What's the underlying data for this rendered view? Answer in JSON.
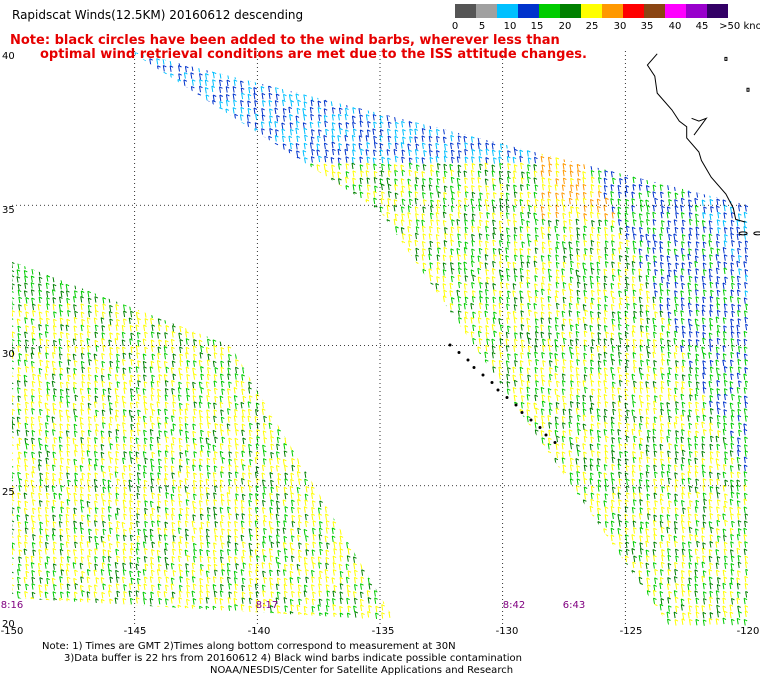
{
  "title": "Rapidscat Winds(12.5KM) 20160612 descending",
  "note_red": [
    "Note: black circles have been added to the wind barbs, wherever less than",
    "optimal wind retrieval conditions are met due to the ISS attitude changes."
  ],
  "colorbar": {
    "labels": [
      "0",
      "5",
      "10",
      "15",
      "20",
      "25",
      "30",
      "35",
      "40",
      "45",
      ">50 knots"
    ],
    "colors": [
      "#555555",
      "#a0a0a0",
      "#00c0ff",
      "#0033cc",
      "#00cc00",
      "#008000",
      "#ffff00",
      "#ff9900",
      "#ff0000",
      "#8b4513",
      "#ff00ff",
      "#9900cc",
      "#330066"
    ]
  },
  "lat_ticks": [
    "40",
    "35",
    "30",
    "25",
    "20"
  ],
  "lon_ticks": [
    "-150",
    "-145",
    "-140",
    "-135",
    "-130",
    "-125",
    "-120"
  ],
  "times": [
    "8:16",
    "8:17",
    "8:42",
    "6:43"
  ],
  "footer": {
    "line1": "Note: 1) Times are GMT 2)Times along bottom correspond to measurement at 30N",
    "line2": "3)Data buffer is 22 hrs from 20160612 4) Black wind barbs indicate possible contamination",
    "line3": "NOAA/NESDIS/Center for Satellite Applications and Research"
  },
  "map_data": {
    "lon_range": [
      -150,
      -120
    ],
    "lat_range": [
      20,
      40.5
    ],
    "graticule_lon": [
      -145,
      -140,
      -135,
      -130,
      -125
    ],
    "graticule_lat": [
      25,
      30,
      35
    ],
    "swaths": [
      {
        "name": "swath-west",
        "corners": [
          [
            -150,
            33
          ],
          [
            -150,
            21
          ],
          [
            -134.4,
            20.2
          ],
          [
            -141.1,
            30
          ]
        ]
      },
      {
        "name": "swath-east",
        "corners": [
          [
            -145.2,
            40.5
          ],
          [
            -135,
            34.8
          ],
          [
            -123.2,
            20
          ],
          [
            -120,
            20
          ],
          [
            -120,
            35
          ]
        ]
      }
    ]
  }
}
